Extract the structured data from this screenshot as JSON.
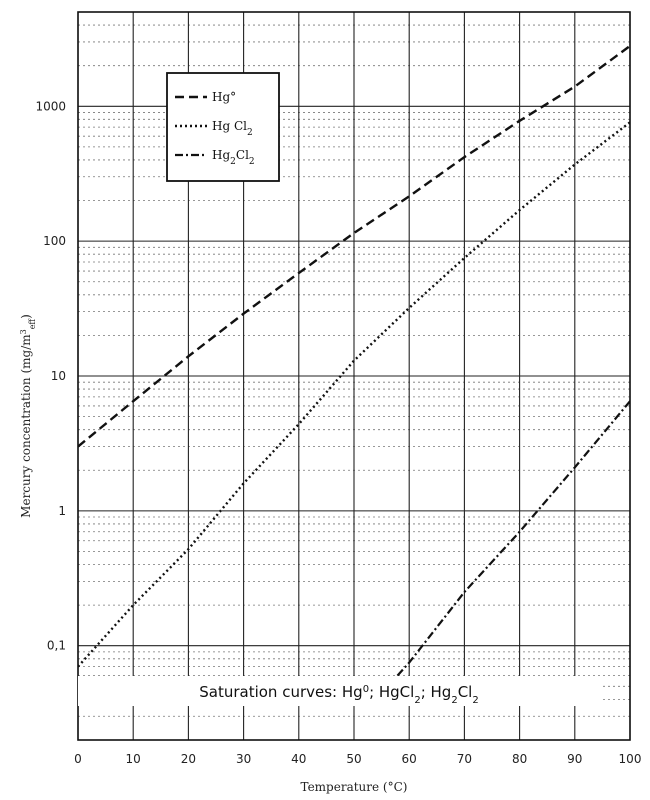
{
  "chart_data": {
    "type": "line",
    "x_axis": {
      "label": "Temperature (°C)",
      "range": [
        0,
        100
      ],
      "ticks": [
        0,
        10,
        20,
        30,
        40,
        50,
        60,
        70,
        80,
        90,
        100
      ]
    },
    "y_axis": {
      "label": "Mercury concentration (mg/m",
      "label_superscript": "3",
      "label_subscript": "eff",
      "label_suffix": ")",
      "scale": "log",
      "range": [
        0.02,
        5000
      ],
      "ticks": [
        {
          "value": 0.1,
          "label": "0,1"
        },
        {
          "value": 1,
          "label": "1"
        },
        {
          "value": 10,
          "label": "10"
        },
        {
          "value": 100,
          "label": "100"
        },
        {
          "value": 1000,
          "label": "1000"
        }
      ]
    },
    "grid": {
      "major": true,
      "minor_dotted": true
    },
    "legend": {
      "placement": "top-left",
      "entries": [
        {
          "series": 0,
          "text": "Hg°",
          "parts": [
            {
              "t": "Hg°"
            }
          ]
        },
        {
          "series": 1,
          "text": "Hg Cl2",
          "parts": [
            {
              "t": "Hg Cl"
            },
            {
              "t": "2",
              "sub": true
            }
          ]
        },
        {
          "series": 2,
          "text": "Hg2Cl2",
          "parts": [
            {
              "t": "Hg"
            },
            {
              "t": "2",
              "sub": true
            },
            {
              "t": "Cl"
            },
            {
              "t": "2",
              "sub": true
            }
          ]
        }
      ]
    },
    "series": [
      {
        "name": "Hg°",
        "style": "dashed",
        "points": [
          [
            0,
            3.0
          ],
          [
            10,
            6.5
          ],
          [
            20,
            14
          ],
          [
            30,
            29
          ],
          [
            40,
            58
          ],
          [
            50,
            115
          ],
          [
            60,
            215
          ],
          [
            70,
            420
          ],
          [
            80,
            780
          ],
          [
            90,
            1400
          ],
          [
            100,
            2800
          ]
        ]
      },
      {
        "name": "Hg Cl2",
        "style": "dotted",
        "points": [
          [
            0,
            0.07
          ],
          [
            10,
            0.2
          ],
          [
            20,
            0.52
          ],
          [
            30,
            1.6
          ],
          [
            40,
            4.4
          ],
          [
            50,
            13
          ],
          [
            60,
            32
          ],
          [
            70,
            75
          ],
          [
            80,
            170
          ],
          [
            90,
            370
          ],
          [
            100,
            760
          ]
        ]
      },
      {
        "name": "Hg2Cl2",
        "style": "dashdot",
        "points": [
          [
            54,
            0.04
          ],
          [
            60,
            0.075
          ],
          [
            70,
            0.25
          ],
          [
            80,
            0.7
          ],
          [
            90,
            2.1
          ],
          [
            100,
            6.5
          ]
        ]
      }
    ],
    "caption": {
      "text": "Saturation curves: Hg0; HgCl2; Hg2Cl2",
      "parts": [
        {
          "t": "Saturation curves: Hg"
        },
        {
          "t": "0",
          "sup": true
        },
        {
          "t": "; HgCl"
        },
        {
          "t": "2",
          "sub": true
        },
        {
          "t": "; Hg"
        },
        {
          "t": "2",
          "sub": true
        },
        {
          "t": "Cl"
        },
        {
          "t": "2",
          "sub": true
        }
      ]
    }
  }
}
